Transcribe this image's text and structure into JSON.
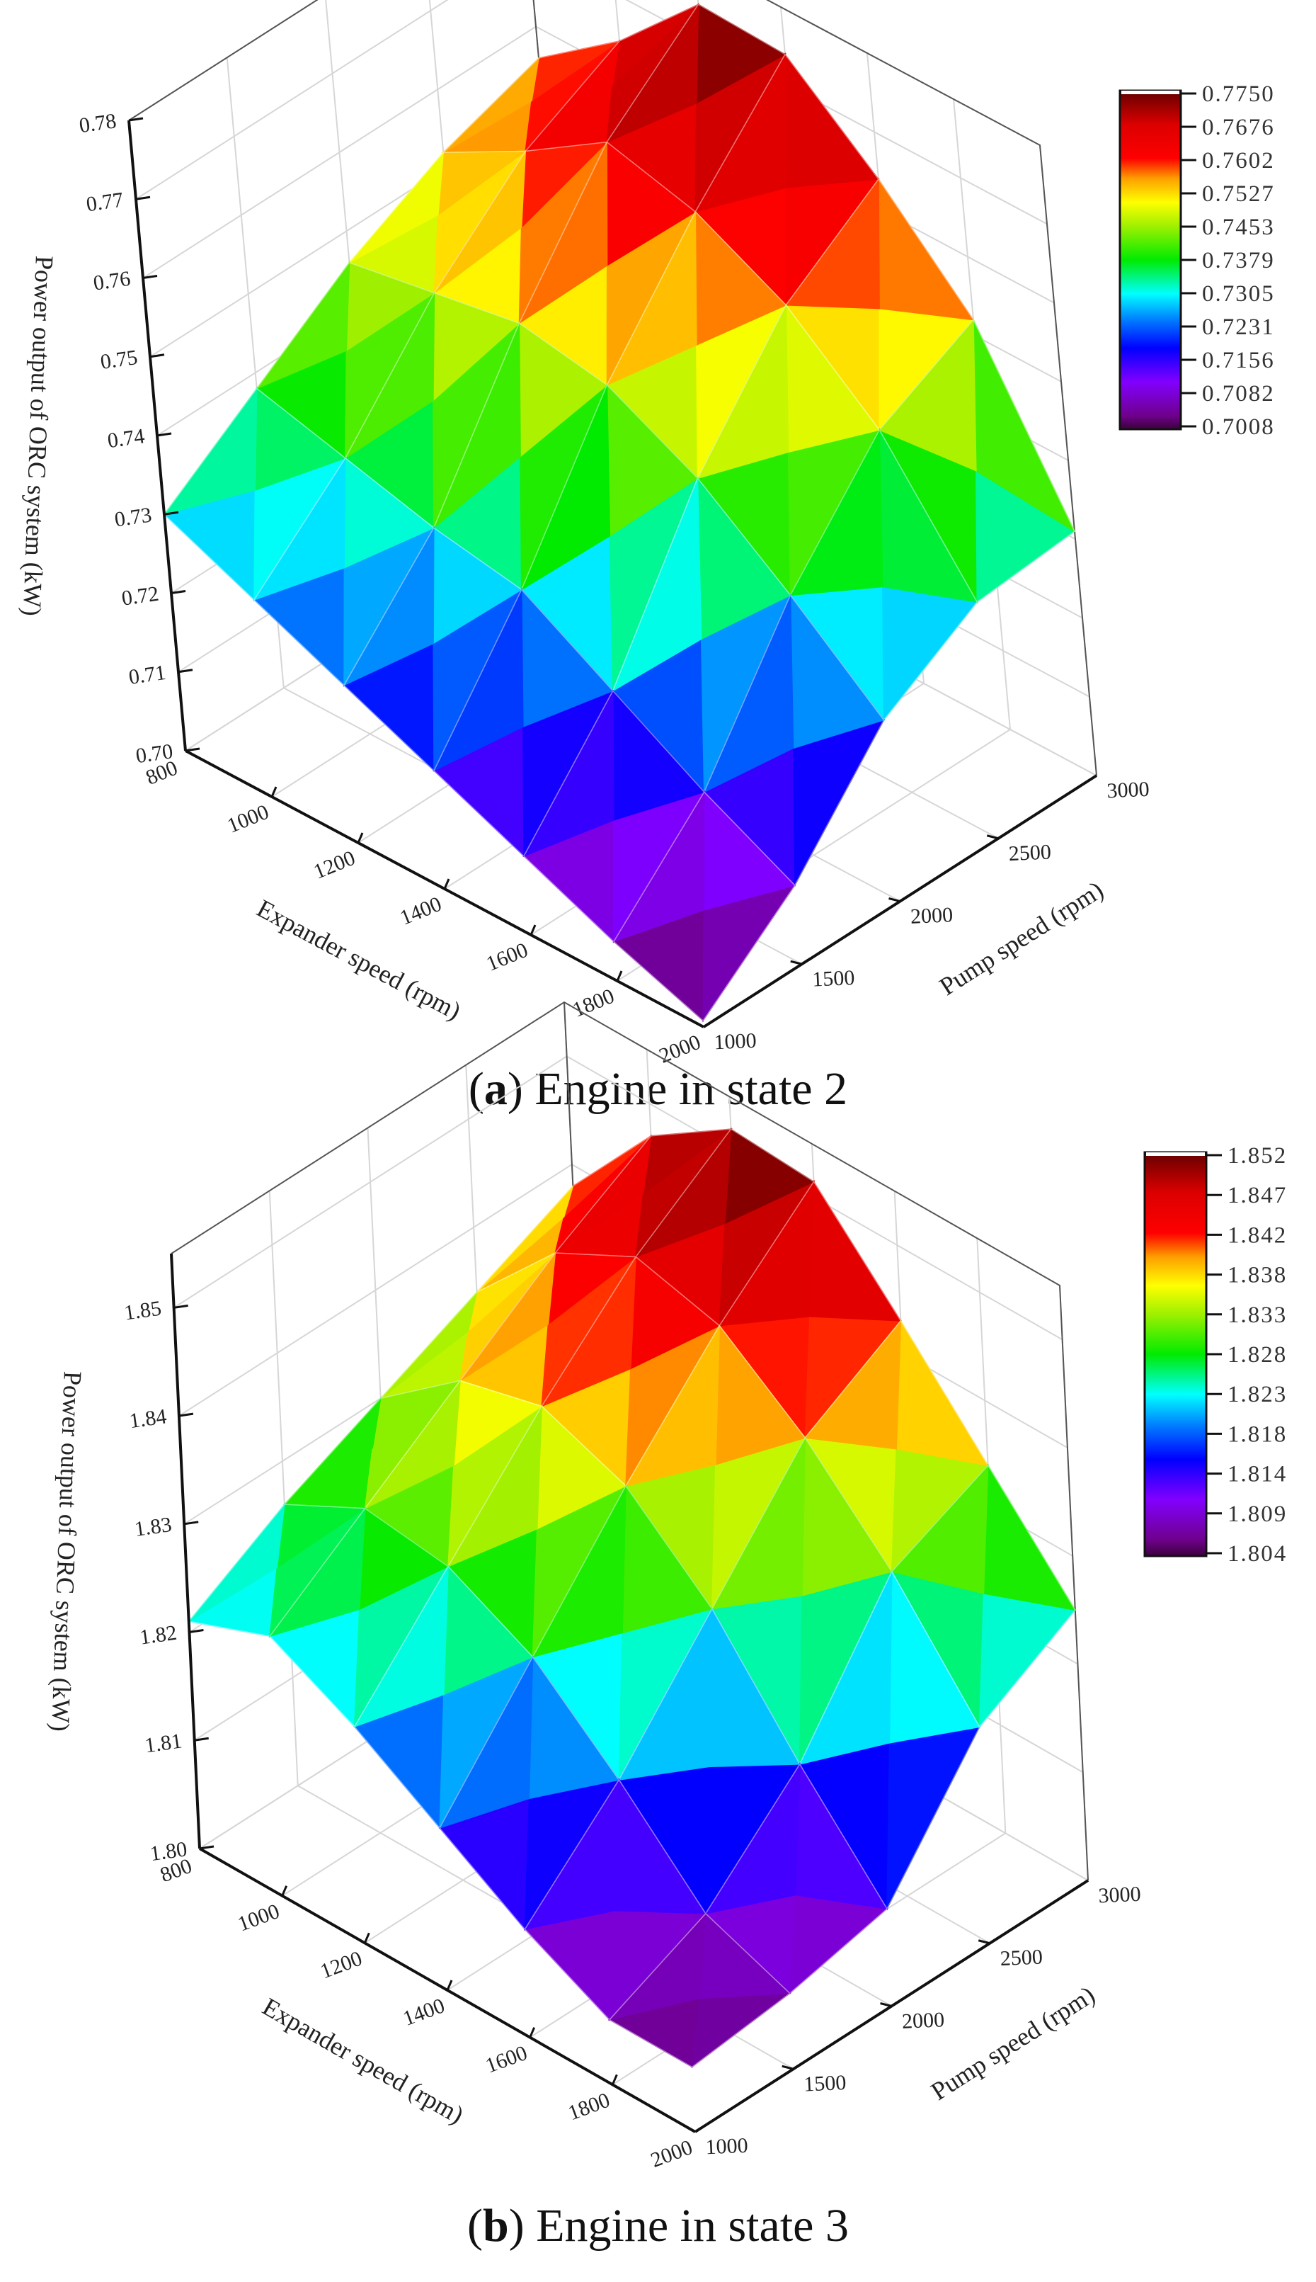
{
  "figure": {
    "panels": [
      {
        "id": "a",
        "caption_letter": "a",
        "caption_text": " Engine in state 2",
        "zlabel": "Power output of ORC system (kW)",
        "xlabel": "Expander speed (rpm)",
        "ylabel": "Pump speed (rpm)",
        "z_ticks": [
          "0.70",
          "0.71",
          "0.72",
          "0.73",
          "0.74",
          "0.75",
          "0.76",
          "0.77",
          "0.78"
        ],
        "x_ticks": [
          "800",
          "1000",
          "1200",
          "1400",
          "1600",
          "1800",
          "2000"
        ],
        "y_ticks": [
          "1000",
          "1500",
          "2000",
          "2500",
          "3000"
        ],
        "colorbar_ticks": [
          "0.7750",
          "0.7676",
          "0.7602",
          "0.7527",
          "0.7453",
          "0.7379",
          "0.7305",
          "0.7231",
          "0.7156",
          "0.7082",
          "0.7008"
        ]
      },
      {
        "id": "b",
        "caption_letter": "b",
        "caption_text": " Engine in state 3",
        "zlabel": "Power output of ORC system (kW)",
        "xlabel": "Expander speed (rpm)",
        "ylabel": "Pump speed (rpm)",
        "z_ticks": [
          "1.80",
          "1.81",
          "1.82",
          "1.83",
          "1.84",
          "1.85"
        ],
        "x_ticks": [
          "800",
          "1000",
          "1200",
          "1400",
          "1600",
          "1800",
          "2000"
        ],
        "y_ticks": [
          "1000",
          "1500",
          "2000",
          "2500",
          "3000"
        ],
        "colorbar_ticks": [
          "1.852",
          "1.847",
          "1.842",
          "1.838",
          "1.833",
          "1.828",
          "1.823",
          "1.818",
          "1.814",
          "1.809",
          "1.804"
        ]
      }
    ]
  },
  "chart_data": [
    {
      "type": "surface3d",
      "title": "(a) Engine in state 2",
      "xlabel": "Expander speed (rpm)",
      "ylabel": "Pump speed (rpm)",
      "zlabel": "Power output of ORC system (kW)",
      "x": [
        800,
        1000,
        1200,
        1400,
        1600,
        1800,
        2000
      ],
      "y": [
        1000,
        1500,
        2000,
        2500,
        3000
      ],
      "zlim": [
        0.7,
        0.78
      ],
      "colorbar": {
        "min": 0.7008,
        "max": 0.775,
        "colormap": "rainbow (purple-blue-cyan-green-yellow-red-darkred)"
      },
      "z": [
        [
          0.73,
          0.738,
          0.746,
          0.752,
          0.756
        ],
        [
          0.725,
          0.735,
          0.748,
          0.758,
          0.764
        ],
        [
          0.72,
          0.732,
          0.75,
          0.765,
          0.7745
        ],
        [
          0.715,
          0.73,
          0.748,
          0.762,
          0.774
        ],
        [
          0.71,
          0.723,
          0.742,
          0.756,
          0.764
        ],
        [
          0.705,
          0.716,
          0.733,
          0.746,
          0.752
        ],
        [
          0.7008,
          0.71,
          0.723,
          0.73,
          0.731
        ]
      ],
      "grid": true
    },
    {
      "type": "surface3d",
      "title": "(b) Engine in state 3",
      "xlabel": "Expander speed (rpm)",
      "ylabel": "Pump speed (rpm)",
      "zlabel": "Power output of ORC system (kW)",
      "x": [
        800,
        1000,
        1200,
        1400,
        1600,
        1800,
        2000
      ],
      "y": [
        1000,
        1500,
        2000,
        2500,
        3000
      ],
      "zlim": [
        1.8,
        1.855
      ],
      "colorbar": {
        "min": 1.804,
        "max": 1.852,
        "colormap": "rainbow (purple-blue-cyan-green-yellow-red-darkred)"
      },
      "z": [
        [
          1.821,
          1.826,
          1.83,
          1.834,
          1.838
        ],
        [
          1.824,
          1.83,
          1.836,
          1.842,
          1.847
        ],
        [
          1.82,
          1.829,
          1.838,
          1.846,
          1.852
        ],
        [
          1.815,
          1.825,
          1.835,
          1.844,
          1.8515
        ],
        [
          1.81,
          1.818,
          1.828,
          1.838,
          1.843
        ],
        [
          1.806,
          1.81,
          1.818,
          1.83,
          1.834
        ],
        [
          1.806,
          1.807,
          1.809,
          1.82,
          1.825
        ]
      ],
      "grid": true
    }
  ]
}
